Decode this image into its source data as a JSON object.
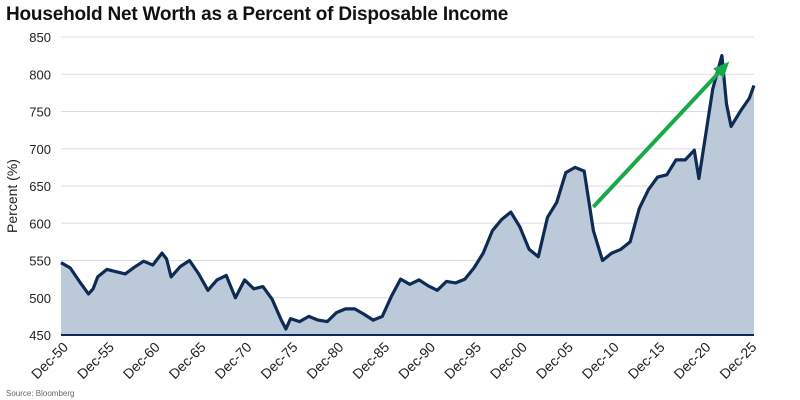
{
  "chart_data": {
    "type": "area",
    "title": "Household Net Worth as a Percent of Disposable Income",
    "ylabel": "Percent (%)",
    "xlabel": "",
    "ylim": [
      450,
      850
    ],
    "y_ticks": [
      "450",
      "500",
      "550",
      "600",
      "650",
      "700",
      "750",
      "800",
      "850"
    ],
    "x_range": [
      1950,
      2025.5
    ],
    "x_ticks": [
      {
        "year": 1950,
        "label": "Dec-50"
      },
      {
        "year": 1955,
        "label": "Dec-55"
      },
      {
        "year": 1960,
        "label": "Dec-60"
      },
      {
        "year": 1965,
        "label": "Dec-65"
      },
      {
        "year": 1970,
        "label": "Dec-70"
      },
      {
        "year": 1975,
        "label": "Dec-75"
      },
      {
        "year": 1980,
        "label": "Dec-80"
      },
      {
        "year": 1985,
        "label": "Dec-85"
      },
      {
        "year": 1990,
        "label": "Dec-90"
      },
      {
        "year": 1995,
        "label": "Dec-95"
      },
      {
        "year": 2000,
        "label": "Dec-00"
      },
      {
        "year": 2005,
        "label": "Dec-05"
      },
      {
        "year": 2010,
        "label": "Dec-10"
      },
      {
        "year": 2015,
        "label": "Dec-15"
      },
      {
        "year": 2020,
        "label": "Dec-20"
      },
      {
        "year": 2025,
        "label": "Dec-25"
      }
    ],
    "grid": true,
    "series": [
      {
        "color": "#0d2b55",
        "fill": "#bcc9d8",
        "x": [
          1950,
          1951,
          1952,
          1953,
          1953.5,
          1954,
          1955,
          1956,
          1957,
          1958,
          1959,
          1960,
          1961,
          1961.5,
          1962,
          1963,
          1964,
          1965,
          1966,
          1967,
          1968,
          1969,
          1970,
          1971,
          1972,
          1973,
          1974,
          1974.5,
          1975,
          1976,
          1977,
          1978,
          1979,
          1980,
          1981,
          1982,
          1983,
          1984,
          1985,
          1986,
          1987,
          1988,
          1989,
          1990,
          1991,
          1992,
          1993,
          1994,
          1995,
          1996,
          1997,
          1998,
          1999,
          2000,
          2001,
          2002,
          2003,
          2004,
          2005,
          2006,
          2007,
          2008,
          2009,
          2010,
          2011,
          2012,
          2013,
          2014,
          2015,
          2016,
          2017,
          2018,
          2019,
          2019.5,
          2020,
          2021,
          2022,
          2022.5,
          2023,
          2024,
          2025,
          2025.5
        ],
        "y": [
          547,
          540,
          522,
          505,
          512,
          528,
          538,
          535,
          532,
          541,
          549,
          544,
          560,
          552,
          528,
          542,
          550,
          532,
          510,
          524,
          530,
          500,
          524,
          512,
          515,
          498,
          470,
          458,
          472,
          468,
          475,
          470,
          468,
          480,
          485,
          485,
          478,
          470,
          475,
          502,
          525,
          518,
          524,
          516,
          510,
          522,
          520,
          525,
          540,
          560,
          590,
          605,
          615,
          595,
          565,
          555,
          608,
          628,
          668,
          675,
          670,
          590,
          550,
          560,
          565,
          575,
          620,
          645,
          662,
          665,
          685,
          685,
          698,
          660,
          700,
          780,
          825,
          760,
          730,
          750,
          768,
          785
        ]
      }
    ],
    "annotations": [
      {
        "type": "arrow",
        "color": "#1aa84a",
        "from": {
          "x": 2008,
          "y": 622
        },
        "to": {
          "x": 2022.8,
          "y": 817
        }
      }
    ],
    "source": "Source: Bloomberg"
  }
}
